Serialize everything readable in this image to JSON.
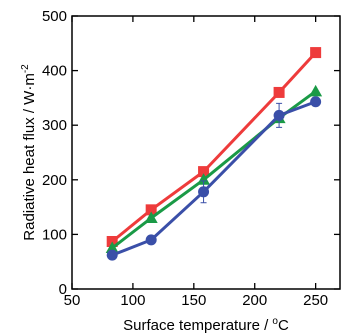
{
  "chart_data": {
    "type": "line",
    "xlabel": "Surface temperature / ",
    "xlabel_unit": "°C",
    "ylabel": "Radiative heat flux / W·m",
    "ylabel_exponent": "-2",
    "xlim": [
      50,
      270
    ],
    "ylim": [
      0,
      500
    ],
    "xticks": [
      50,
      100,
      150,
      200,
      250
    ],
    "yticks": [
      0,
      100,
      200,
      300,
      400,
      500
    ],
    "xtick_labels": [
      "50",
      "100",
      "150",
      "200",
      "250"
    ],
    "ytick_labels": [
      "0",
      "100",
      "200",
      "300",
      "400",
      "500"
    ],
    "grid": false,
    "series": [
      {
        "marker": "square",
        "color": "#ee3b3b",
        "x": [
          83,
          115,
          158,
          220,
          250
        ],
        "y": [
          87,
          145,
          215,
          360,
          433
        ],
        "err": [
          0,
          0,
          0,
          0,
          0
        ]
      },
      {
        "marker": "triangle",
        "color": "#1a9a46",
        "x": [
          83,
          115,
          158,
          220,
          250
        ],
        "y": [
          75,
          130,
          200,
          313,
          362
        ],
        "err": [
          0,
          0,
          0,
          0,
          0
        ]
      },
      {
        "marker": "circle",
        "color": "#3a4fa8",
        "x": [
          83,
          115,
          158,
          220,
          250
        ],
        "y": [
          62,
          90,
          178,
          318,
          343
        ],
        "err": [
          4,
          4,
          20,
          22,
          6
        ]
      }
    ]
  }
}
